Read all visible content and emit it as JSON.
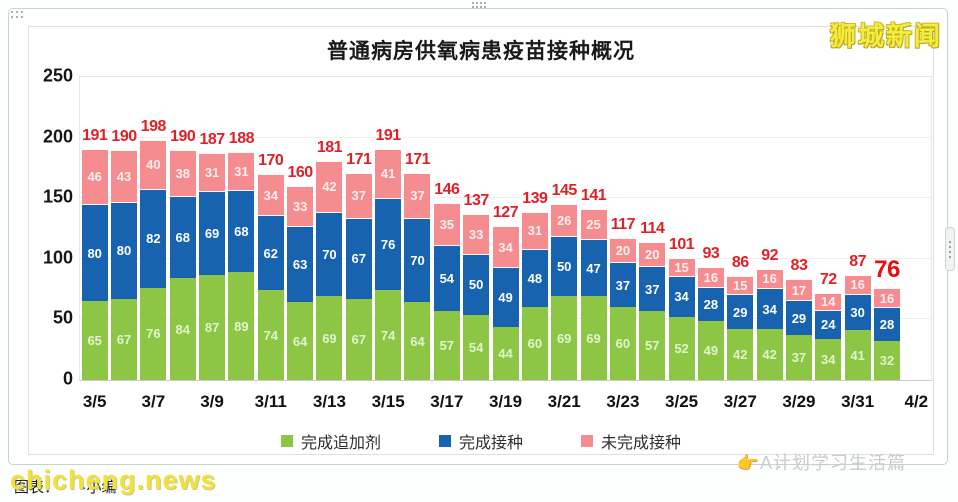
{
  "header": {
    "title": "普通病房供氧病患疫苗接种概况",
    "logo": "狮城新闻"
  },
  "chart_data": {
    "type": "bar",
    "stacked": true,
    "title": "普通病房供氧病患疫苗接种概况",
    "ylim": [
      0,
      250
    ],
    "yticks": [
      0,
      50,
      100,
      150,
      200,
      250
    ],
    "grid": true,
    "legend_position": "bottom",
    "x_tick_labels": [
      "3/5",
      "3/7",
      "3/9",
      "3/11",
      "3/13",
      "3/15",
      "3/17",
      "3/19",
      "3/21",
      "3/23",
      "3/25",
      "3/27",
      "3/29",
      "3/31",
      "4/2"
    ],
    "series": [
      {
        "name": "完成追加剂",
        "key": "booster",
        "color": "#8CC644",
        "label_color": "#E3F3CF",
        "values": [
          65,
          67,
          76,
          84,
          87,
          89,
          74,
          64,
          69,
          67,
          74,
          64,
          57,
          54,
          44,
          60,
          69,
          69,
          60,
          57,
          52,
          49,
          42,
          42,
          37,
          34,
          41,
          32
        ]
      },
      {
        "name": "完成接种",
        "key": "fully-vaccinated",
        "color": "#1763AF",
        "label_color": "#FFFFFF",
        "values": [
          80,
          80,
          82,
          68,
          69,
          68,
          62,
          63,
          70,
          67,
          76,
          70,
          54,
          50,
          49,
          48,
          50,
          47,
          37,
          37,
          34,
          28,
          29,
          34,
          29,
          24,
          30,
          28
        ]
      },
      {
        "name": "未完成接种",
        "key": "not-fully-vaccinated",
        "color": "#F58C8F",
        "label_color": "#FDEFEF",
        "values": [
          46,
          43,
          40,
          38,
          31,
          31,
          34,
          33,
          42,
          37,
          41,
          37,
          35,
          33,
          34,
          31,
          26,
          25,
          20,
          20,
          15,
          16,
          15,
          16,
          17,
          14,
          16,
          16
        ]
      }
    ],
    "totals": [
      191,
      190,
      198,
      190,
      187,
      188,
      170,
      160,
      181,
      171,
      191,
      171,
      146,
      137,
      127,
      139,
      145,
      141,
      117,
      114,
      101,
      93,
      86,
      92,
      83,
      72,
      87,
      76
    ],
    "total_label_color": "#DF2127",
    "final_total": {
      "value": 76,
      "color": "#E60E0E"
    }
  },
  "legend": {
    "items": [
      {
        "label": "完成追加剂",
        "color": "#8CC644"
      },
      {
        "label": "完成接种",
        "color": "#1763AF"
      },
      {
        "label": "未完成接种",
        "color": "#F58C8F"
      }
    ]
  },
  "footer": {
    "watermark": "chicheng.news",
    "source_text": "图表：　　·小编",
    "pointer_icon": "👉",
    "right_text": "A计划学习生活篇"
  }
}
